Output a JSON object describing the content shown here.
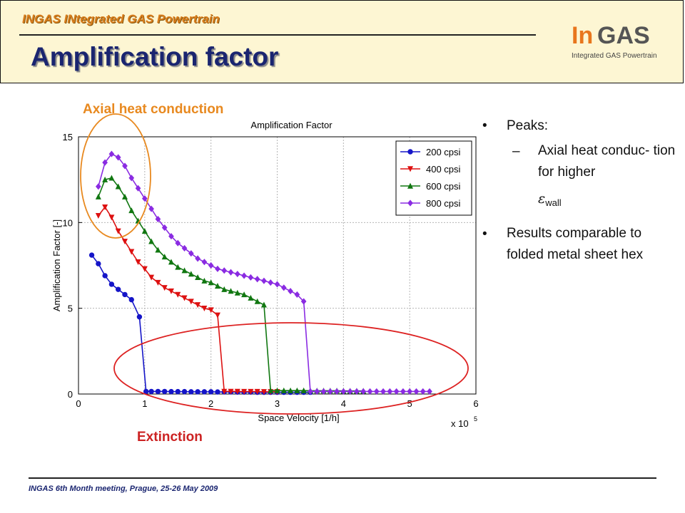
{
  "header": {
    "project": "INGAS INtegrated GAS Powertrain",
    "title": "Amplification factor"
  },
  "logo": {
    "part1": "In",
    "part2": "GAS",
    "subtitle": "Integrated GAS Powertrain"
  },
  "callouts": {
    "axial": "Axial heat conduction",
    "extinction": "Extinction"
  },
  "bullets": {
    "peaks": "Peaks:",
    "axial": "Axial heat conduc- tion for higher",
    "eps_symbol": "ε",
    "eps_sub": "wall",
    "results": "Results comparable to folded metal sheet hex"
  },
  "footer": "INGAS 6th Month meeting, Prague, 25-26 May 2009",
  "colors": {
    "s200": "#1515c8",
    "s400": "#dd1111",
    "s600": "#117711",
    "s800": "#8a2be2",
    "axial_circle": "#e8891f",
    "extinction_circle": "#dd2222"
  },
  "chart_data": {
    "type": "line",
    "title": "Amplification Factor",
    "xlabel": "Space Velocity [1/h]",
    "ylabel": "Amplification Factor [-]",
    "x_multiplier": "x 10",
    "x_multiplier_exp": "5",
    "xlim": [
      0,
      6
    ],
    "ylim": [
      0,
      15
    ],
    "xticks": [
      "0",
      "1",
      "2",
      "3",
      "4",
      "5",
      "6"
    ],
    "yticks": [
      "0",
      "5",
      "10",
      "15"
    ],
    "grid": true,
    "legend_position": "top-right",
    "series": [
      {
        "name": "200 cpsi",
        "color": "#1515c8",
        "marker": "circle",
        "x": [
          0.2,
          0.3,
          0.4,
          0.5,
          0.6,
          0.7,
          0.8,
          0.92,
          1.02,
          1.1,
          1.2,
          1.3,
          1.4,
          1.5,
          1.6,
          1.7,
          1.8,
          1.9,
          2.0,
          2.1,
          2.2,
          2.3,
          2.4,
          2.5,
          2.6,
          2.7,
          2.8,
          2.9,
          3.0,
          3.1,
          3.2,
          3.3,
          3.4,
          3.5
        ],
        "y": [
          8.1,
          7.6,
          6.9,
          6.4,
          6.1,
          5.8,
          5.5,
          4.5,
          0.15,
          0.15,
          0.15,
          0.15,
          0.14,
          0.14,
          0.14,
          0.13,
          0.13,
          0.13,
          0.13,
          0.12,
          0.12,
          0.12,
          0.11,
          0.11,
          0.11,
          0.1,
          0.1,
          0.1,
          0.1,
          0.1,
          0.1,
          0.1,
          0.1,
          0.1
        ]
      },
      {
        "name": "400 cpsi",
        "color": "#dd1111",
        "marker": "triangle-down",
        "x": [
          0.3,
          0.4,
          0.5,
          0.6,
          0.7,
          0.8,
          0.9,
          1.0,
          1.1,
          1.2,
          1.3,
          1.4,
          1.5,
          1.6,
          1.7,
          1.8,
          1.9,
          2.0,
          2.1,
          2.2,
          2.3,
          2.4,
          2.5,
          2.6,
          2.7,
          2.8,
          2.9,
          3.0
        ],
        "y": [
          10.4,
          10.9,
          10.3,
          9.5,
          8.9,
          8.3,
          7.7,
          7.3,
          6.8,
          6.5,
          6.2,
          6.0,
          5.8,
          5.6,
          5.4,
          5.2,
          5.0,
          4.9,
          4.6,
          0.15,
          0.15,
          0.15,
          0.14,
          0.14,
          0.14,
          0.13,
          0.13,
          0.13
        ]
      },
      {
        "name": "600 cpsi",
        "color": "#117711",
        "marker": "triangle-up",
        "x": [
          0.3,
          0.4,
          0.5,
          0.6,
          0.7,
          0.8,
          0.9,
          1.0,
          1.1,
          1.2,
          1.3,
          1.4,
          1.5,
          1.6,
          1.7,
          1.8,
          1.9,
          2.0,
          2.1,
          2.2,
          2.3,
          2.4,
          2.5,
          2.6,
          2.7,
          2.8,
          2.9,
          3.0,
          3.1,
          3.2,
          3.3,
          3.4,
          3.5,
          3.6,
          3.7,
          3.8,
          3.9,
          4.0,
          4.1,
          4.2,
          4.3
        ],
        "y": [
          11.5,
          12.5,
          12.6,
          12.1,
          11.5,
          10.7,
          10.1,
          9.5,
          8.9,
          8.4,
          8.0,
          7.7,
          7.4,
          7.2,
          7.0,
          6.8,
          6.6,
          6.5,
          6.3,
          6.1,
          6.0,
          5.9,
          5.8,
          5.6,
          5.4,
          5.2,
          0.2,
          0.2,
          0.2,
          0.2,
          0.2,
          0.2,
          0.19,
          0.19,
          0.19,
          0.19,
          0.19,
          0.18,
          0.18,
          0.18,
          0.18
        ]
      },
      {
        "name": "800 cpsi",
        "color": "#8a2be2",
        "marker": "diamond",
        "x": [
          0.3,
          0.4,
          0.5,
          0.6,
          0.7,
          0.8,
          0.9,
          1.0,
          1.1,
          1.2,
          1.3,
          1.4,
          1.5,
          1.6,
          1.7,
          1.8,
          1.9,
          2.0,
          2.1,
          2.2,
          2.3,
          2.4,
          2.5,
          2.6,
          2.7,
          2.8,
          2.9,
          3.0,
          3.1,
          3.2,
          3.3,
          3.4,
          3.5,
          3.6,
          3.7,
          3.8,
          3.9,
          4.0,
          4.1,
          4.2,
          4.3,
          4.4,
          4.5,
          4.6,
          4.7,
          4.8,
          4.9,
          5.0,
          5.1,
          5.2,
          5.3
        ],
        "y": [
          12.1,
          13.5,
          14.0,
          13.8,
          13.3,
          12.6,
          12.0,
          11.4,
          10.8,
          10.2,
          9.7,
          9.2,
          8.8,
          8.5,
          8.2,
          7.9,
          7.7,
          7.5,
          7.3,
          7.2,
          7.1,
          7.0,
          6.9,
          6.8,
          6.7,
          6.6,
          6.5,
          6.4,
          6.2,
          6.0,
          5.8,
          5.4,
          0.15,
          0.15,
          0.15,
          0.15,
          0.15,
          0.15,
          0.15,
          0.15,
          0.15,
          0.15,
          0.15,
          0.15,
          0.15,
          0.15,
          0.15,
          0.15,
          0.15,
          0.15,
          0.15
        ]
      }
    ]
  }
}
